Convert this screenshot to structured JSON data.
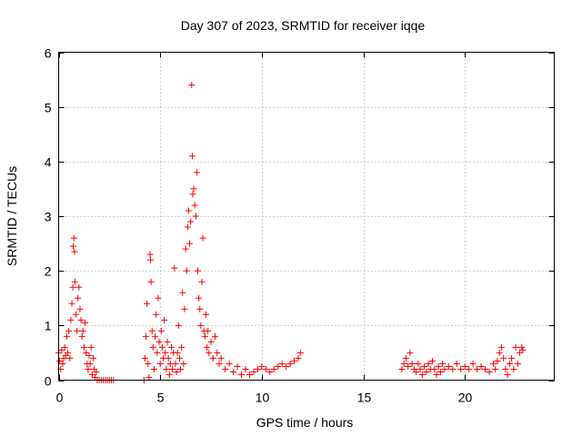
{
  "chart_data": {
    "type": "scatter",
    "title": "Day 307 of 2023, SRMTID for receiver iqqe",
    "xlabel": "GPS time / hours",
    "ylabel": "SRMTID / TECUs",
    "xlim": [
      0,
      24.4
    ],
    "ylim": [
      0,
      6
    ],
    "xticks": [
      0,
      5,
      10,
      15,
      20
    ],
    "yticks": [
      0,
      1,
      2,
      3,
      4,
      5,
      6
    ],
    "grid": true,
    "marker": "plus",
    "color": "#ff0000",
    "series": [
      {
        "name": "SRMTID",
        "points": [
          [
            0.0,
            0.5
          ],
          [
            0.05,
            0.35
          ],
          [
            0.1,
            0.2
          ],
          [
            0.15,
            0.55
          ],
          [
            0.2,
            0.3
          ],
          [
            0.25,
            0.4
          ],
          [
            0.3,
            0.6
          ],
          [
            0.35,
            0.45
          ],
          [
            0.4,
            0.8
          ],
          [
            0.45,
            0.5
          ],
          [
            0.5,
            0.9
          ],
          [
            0.55,
            0.4
          ],
          [
            0.6,
            1.1
          ],
          [
            0.65,
            1.4
          ],
          [
            0.7,
            1.7
          ],
          [
            0.72,
            2.45
          ],
          [
            0.75,
            2.6
          ],
          [
            0.78,
            2.35
          ],
          [
            0.8,
            1.8
          ],
          [
            0.85,
            1.2
          ],
          [
            0.9,
            0.9
          ],
          [
            0.95,
            1.5
          ],
          [
            1.0,
            1.7
          ],
          [
            1.05,
            1.3
          ],
          [
            1.1,
            1.1
          ],
          [
            1.15,
            0.8
          ],
          [
            1.2,
            0.9
          ],
          [
            1.25,
            0.6
          ],
          [
            1.3,
            1.05
          ],
          [
            1.35,
            0.5
          ],
          [
            1.4,
            0.3
          ],
          [
            1.45,
            0.2
          ],
          [
            1.5,
            0.45
          ],
          [
            1.55,
            0.3
          ],
          [
            1.6,
            0.6
          ],
          [
            1.65,
            0.1
          ],
          [
            1.7,
            0.4
          ],
          [
            1.75,
            0.2
          ],
          [
            1.8,
            0.05
          ],
          [
            1.85,
            0.15
          ],
          [
            1.9,
            0.0
          ],
          [
            2.0,
            0.0
          ],
          [
            2.1,
            0.0
          ],
          [
            2.2,
            0.0
          ],
          [
            2.3,
            0.0
          ],
          [
            2.4,
            0.0
          ],
          [
            2.5,
            0.0
          ],
          [
            2.6,
            0.0
          ],
          [
            2.7,
            0.0
          ],
          [
            4.2,
            0.0
          ],
          [
            4.25,
            0.4
          ],
          [
            4.3,
            0.8
          ],
          [
            4.35,
            1.4
          ],
          [
            4.4,
            0.3
          ],
          [
            4.45,
            0.05
          ],
          [
            4.5,
            2.3
          ],
          [
            4.52,
            2.2
          ],
          [
            4.55,
            1.8
          ],
          [
            4.6,
            0.9
          ],
          [
            4.65,
            0.6
          ],
          [
            4.7,
            0.2
          ],
          [
            4.75,
            0.8
          ],
          [
            4.8,
            1.2
          ],
          [
            4.85,
            0.5
          ],
          [
            4.9,
            1.5
          ],
          [
            4.95,
            0.7
          ],
          [
            5.0,
            0.3
          ],
          [
            5.05,
            0.9
          ],
          [
            5.1,
            0.6
          ],
          [
            5.15,
            0.4
          ],
          [
            5.2,
            1.1
          ],
          [
            5.25,
            0.5
          ],
          [
            5.3,
            0.2
          ],
          [
            5.35,
            0.7
          ],
          [
            5.4,
            0.4
          ],
          [
            5.45,
            0.1
          ],
          [
            5.5,
            0.3
          ],
          [
            5.55,
            0.6
          ],
          [
            5.6,
            0.2
          ],
          [
            5.65,
            0.5
          ],
          [
            5.7,
            2.05
          ],
          [
            5.75,
            0.3
          ],
          [
            5.8,
            0.15
          ],
          [
            5.85,
            0.5
          ],
          [
            5.9,
            1.0
          ],
          [
            5.95,
            0.4
          ],
          [
            6.0,
            0.2
          ],
          [
            6.05,
            0.6
          ],
          [
            6.1,
            1.6
          ],
          [
            6.15,
            0.3
          ],
          [
            6.2,
            1.3
          ],
          [
            6.25,
            2.4
          ],
          [
            6.3,
            2.0
          ],
          [
            6.35,
            2.8
          ],
          [
            6.4,
            3.1
          ],
          [
            6.45,
            2.5
          ],
          [
            6.5,
            2.9
          ],
          [
            6.55,
            5.4
          ],
          [
            6.58,
            4.1
          ],
          [
            6.6,
            3.4
          ],
          [
            6.65,
            3.5
          ],
          [
            6.7,
            3.2
          ],
          [
            6.75,
            3.0
          ],
          [
            6.8,
            3.8
          ],
          [
            6.85,
            2.0
          ],
          [
            6.9,
            1.5
          ],
          [
            6.95,
            1.3
          ],
          [
            7.0,
            1.0
          ],
          [
            7.05,
            1.8
          ],
          [
            7.1,
            2.6
          ],
          [
            7.15,
            0.9
          ],
          [
            7.2,
            0.8
          ],
          [
            7.25,
            1.2
          ],
          [
            7.3,
            0.6
          ],
          [
            7.35,
            0.9
          ],
          [
            7.4,
            0.5
          ],
          [
            7.5,
            0.7
          ],
          [
            7.6,
            0.4
          ],
          [
            7.7,
            0.8
          ],
          [
            7.8,
            0.5
          ],
          [
            7.9,
            0.3
          ],
          [
            8.0,
            0.4
          ],
          [
            8.2,
            0.2
          ],
          [
            8.4,
            0.3
          ],
          [
            8.6,
            0.15
          ],
          [
            8.8,
            0.25
          ],
          [
            9.0,
            0.1
          ],
          [
            9.2,
            0.2
          ],
          [
            9.4,
            0.1
          ],
          [
            9.6,
            0.15
          ],
          [
            9.8,
            0.2
          ],
          [
            10.0,
            0.25
          ],
          [
            10.2,
            0.2
          ],
          [
            10.4,
            0.15
          ],
          [
            10.6,
            0.2
          ],
          [
            10.8,
            0.25
          ],
          [
            11.0,
            0.3
          ],
          [
            11.2,
            0.25
          ],
          [
            11.4,
            0.3
          ],
          [
            11.6,
            0.35
          ],
          [
            11.8,
            0.4
          ],
          [
            11.9,
            0.5
          ],
          [
            16.9,
            0.2
          ],
          [
            17.0,
            0.3
          ],
          [
            17.1,
            0.4
          ],
          [
            17.2,
            0.25
          ],
          [
            17.3,
            0.5
          ],
          [
            17.4,
            0.3
          ],
          [
            17.5,
            0.2
          ],
          [
            17.6,
            0.15
          ],
          [
            17.7,
            0.3
          ],
          [
            17.8,
            0.2
          ],
          [
            17.9,
            0.1
          ],
          [
            18.0,
            0.25
          ],
          [
            18.1,
            0.15
          ],
          [
            18.2,
            0.3
          ],
          [
            18.3,
            0.2
          ],
          [
            18.4,
            0.35
          ],
          [
            18.5,
            0.2
          ],
          [
            18.6,
            0.1
          ],
          [
            18.7,
            0.25
          ],
          [
            18.8,
            0.15
          ],
          [
            18.9,
            0.3
          ],
          [
            19.0,
            0.2
          ],
          [
            19.2,
            0.25
          ],
          [
            19.4,
            0.2
          ],
          [
            19.6,
            0.3
          ],
          [
            19.8,
            0.2
          ],
          [
            20.0,
            0.25
          ],
          [
            20.2,
            0.2
          ],
          [
            20.4,
            0.3
          ],
          [
            20.6,
            0.2
          ],
          [
            20.8,
            0.25
          ],
          [
            21.0,
            0.2
          ],
          [
            21.2,
            0.15
          ],
          [
            21.4,
            0.3
          ],
          [
            21.5,
            0.2
          ],
          [
            21.6,
            0.35
          ],
          [
            21.7,
            0.5
          ],
          [
            21.8,
            0.6
          ],
          [
            21.9,
            0.4
          ],
          [
            22.0,
            0.2
          ],
          [
            22.1,
            0.1
          ],
          [
            22.2,
            0.3
          ],
          [
            22.3,
            0.4
          ],
          [
            22.4,
            0.2
          ],
          [
            22.5,
            0.6
          ],
          [
            22.6,
            0.3
          ],
          [
            22.7,
            0.5
          ],
          [
            22.8,
            0.6
          ],
          [
            22.85,
            0.55
          ]
        ]
      }
    ]
  }
}
